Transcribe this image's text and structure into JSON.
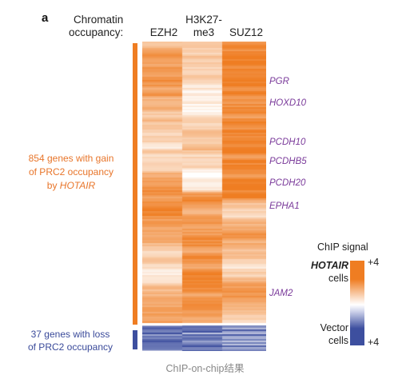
{
  "figure": {
    "panel_letter": "a",
    "occupancy_title_line1": "Chromatin",
    "occupancy_title_line2": "occupancy:",
    "columns": [
      {
        "line1": "EZH2",
        "line2": ""
      },
      {
        "line1": "H3K27-",
        "line2": "me3"
      },
      {
        "line1": "SUZ12",
        "line2": ""
      }
    ],
    "gain_label_line1": "854 genes with gain",
    "gain_label_line2": "of PRC2 occupancy",
    "gain_label_prefix": "by ",
    "gain_label_italic": "HOTAIR",
    "loss_label_line1": "37 genes with loss",
    "loss_label_line2": "of PRC2 occupancy",
    "gene_labels": [
      "PGR",
      "HOXD10",
      "PCDH10",
      "PCDHB5",
      "PCDH20",
      "EPHA1",
      "JAM2"
    ],
    "legend": {
      "title": "ChIP signal",
      "hotair_italic": "HOTAIR",
      "hotair_line2": "cells",
      "vector_line1": "Vector",
      "vector_line2": "cells",
      "top_value": "+4",
      "bottom_value": "+4",
      "high_color": "#ef7d22",
      "low_color": "#3d4f9f"
    },
    "caption": "ChIP-on-chip结果"
  }
}
